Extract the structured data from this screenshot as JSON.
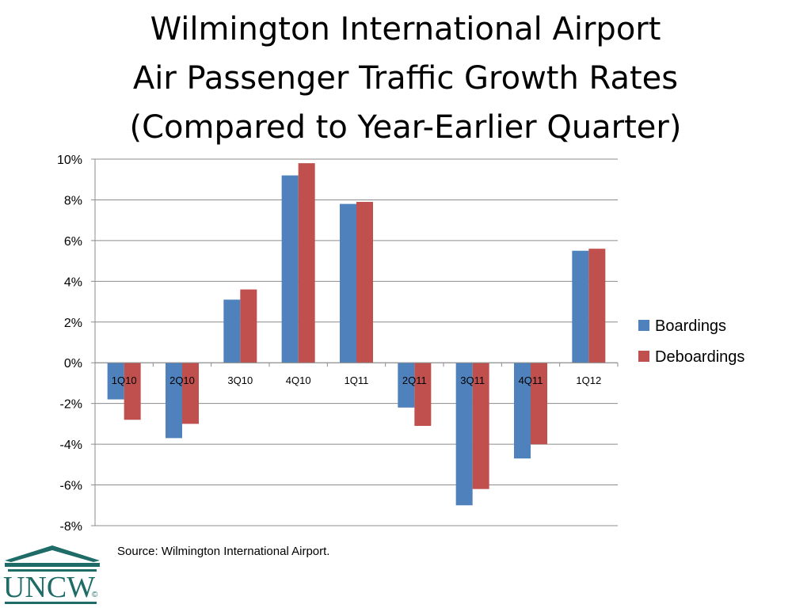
{
  "title_lines": [
    "Wilmington International Airport",
    "Air Passenger Traffic Growth Rates",
    "(Compared to Year-Earlier Quarter)"
  ],
  "chart_data": {
    "type": "bar",
    "categories": [
      "1Q10",
      "2Q10",
      "3Q10",
      "4Q10",
      "1Q11",
      "2Q11",
      "3Q11",
      "4Q11",
      "1Q12"
    ],
    "series": [
      {
        "name": "Boardings",
        "color": "#4F81BD",
        "values": [
          -1.8,
          -3.7,
          3.1,
          9.2,
          7.8,
          -2.2,
          -7.0,
          -4.7,
          5.5
        ]
      },
      {
        "name": "Deboardings",
        "color": "#C0504D",
        "values": [
          -2.8,
          -3.0,
          3.6,
          9.8,
          7.9,
          -3.1,
          -6.2,
          -4.0,
          5.6
        ]
      }
    ],
    "ylim": [
      -8,
      10
    ],
    "y_ticks": [
      10,
      8,
      6,
      4,
      2,
      0,
      -2,
      -4,
      -6,
      -8
    ],
    "y_tick_labels": [
      "10%",
      "8%",
      "6%",
      "4%",
      "2%",
      "0%",
      "-2%",
      "-4%",
      "-6%",
      "-8%"
    ],
    "grid": true,
    "legend_position": "right"
  },
  "source_text": "Source:  Wilmington International Airport.",
  "logo": {
    "text": "UNCW",
    "mark": "©",
    "color": "#1e6b68"
  }
}
